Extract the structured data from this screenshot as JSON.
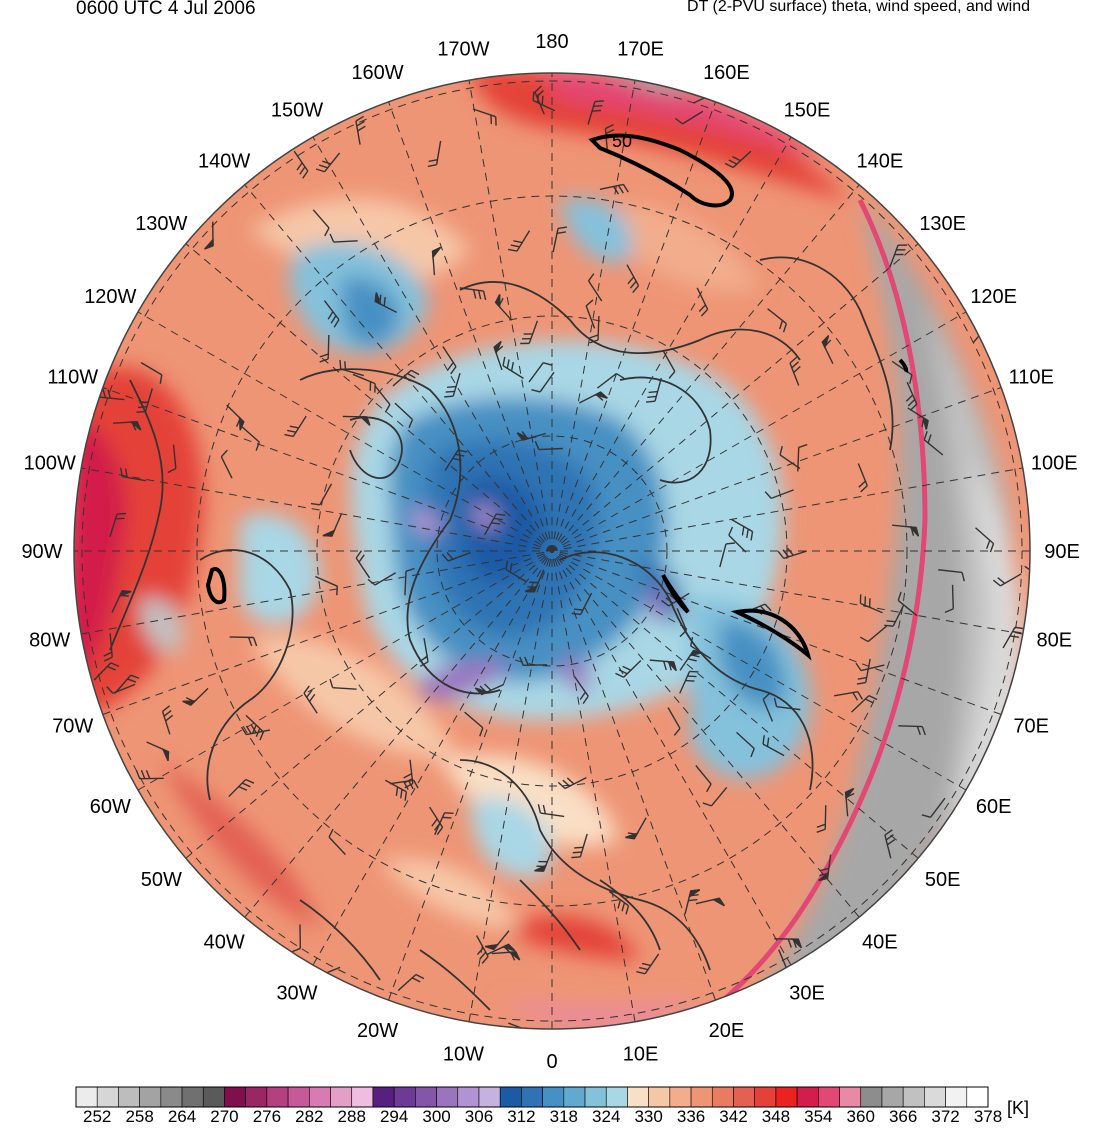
{
  "header": {
    "valid_time": "0600 UTC 4 Jul 2006",
    "product": "DT (2-PVU surface) theta, wind speed, and wind"
  },
  "map": {
    "projection": "north-polar-stereographic",
    "longitude_labels": [
      "180",
      "170E",
      "160E",
      "150E",
      "140E",
      "130E",
      "120E",
      "110E",
      "100E",
      "90E",
      "80E",
      "70E",
      "60E",
      "50E",
      "40E",
      "30E",
      "20E",
      "10E",
      "0",
      "10W",
      "20W",
      "30W",
      "40W",
      "50W",
      "60W",
      "70W",
      "80W",
      "90W",
      "100W",
      "110W",
      "120W",
      "130W",
      "140W",
      "150W",
      "160W",
      "170W"
    ],
    "contour_label": "50",
    "overlays": [
      "coastlines",
      "country-borders",
      "latitude-circles",
      "longitude-lines",
      "wind-barbs",
      "wind-speed-contours"
    ]
  },
  "colorbar": {
    "unit": "[K]",
    "tick_labels": [
      "252",
      "258",
      "264",
      "270",
      "276",
      "282",
      "288",
      "294",
      "300",
      "306",
      "312",
      "318",
      "324",
      "330",
      "336",
      "342",
      "348",
      "354",
      "360",
      "366",
      "372",
      "378"
    ],
    "colors": [
      "#ececec",
      "#d6d6d6",
      "#bdbdbd",
      "#a3a3a3",
      "#8a8a8a",
      "#707070",
      "#5a5a5a",
      "#7f0f4d",
      "#9a2664",
      "#b44080",
      "#c65a98",
      "#d77bb2",
      "#e39fc8",
      "#eebde0",
      "#57207f",
      "#6d3a95",
      "#8456aa",
      "#9b74be",
      "#b093d0",
      "#c5b2e1",
      "#1b5aa5",
      "#2f73b4",
      "#4790c3",
      "#62a9cf",
      "#84c1db",
      "#a9d7e5",
      "#f9dfc5",
      "#f6c7a7",
      "#f2ad8c",
      "#ee9575",
      "#e97b63",
      "#e36052",
      "#e44238",
      "#ea2220",
      "#d31d4a",
      "#e34774",
      "#e889a5",
      "#8d8d8d",
      "#a7a7a7",
      "#c1c1c1",
      "#dadada",
      "#f2f2f2",
      "#ffffff"
    ]
  }
}
